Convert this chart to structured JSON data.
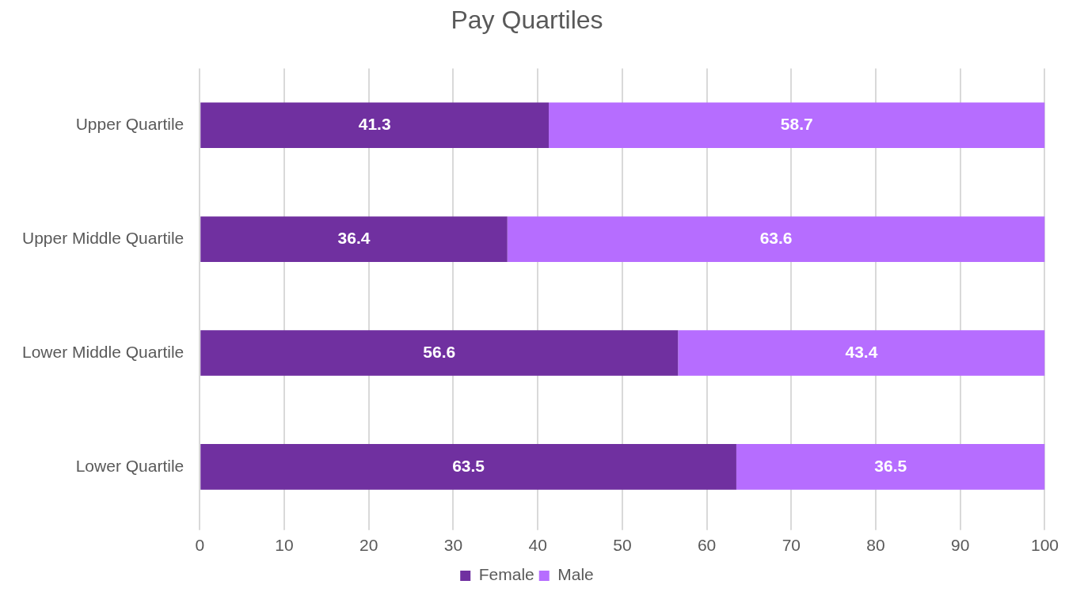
{
  "chart_data": {
    "type": "bar",
    "title": "Pay Quartiles",
    "orientation": "horizontal",
    "stacked": true,
    "categories": [
      "Upper Quartile",
      "Upper Middle Quartile",
      "Lower Middle Quartile",
      "Lower Quartile"
    ],
    "series": [
      {
        "name": "Female",
        "color": "#7030a0",
        "values": [
          41.3,
          36.4,
          56.6,
          63.5
        ]
      },
      {
        "name": "Male",
        "color": "#b66dff",
        "values": [
          58.7,
          63.6,
          43.4,
          36.5
        ]
      }
    ],
    "xlim": [
      0,
      100
    ],
    "xticks": [
      0,
      10,
      20,
      30,
      40,
      50,
      60,
      70,
      80,
      90,
      100
    ],
    "grid": "x",
    "legend": "bottom",
    "data_labels": true
  }
}
